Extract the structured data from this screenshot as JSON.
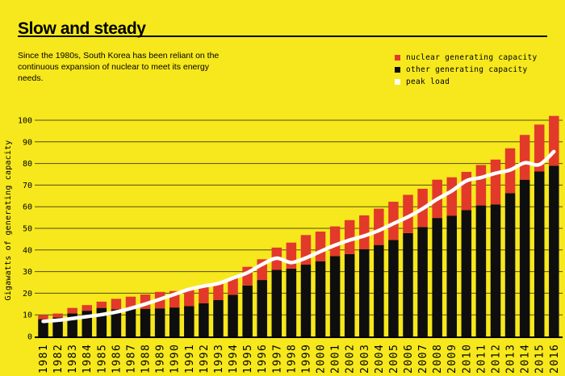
{
  "header": {
    "title": "Slow and steady",
    "subtitle_lines": [
      "Since the 1980s, South Korea has been reliant on the",
      "continuous expansion of nuclear to meet its energy",
      "needs."
    ]
  },
  "legend": {
    "items": [
      {
        "label": "nuclear generating capacity",
        "color": "#E2392B"
      },
      {
        "label": "other generating capacity",
        "color": "#0E0E0E"
      },
      {
        "label": "peak load",
        "color": "#FFFEF2"
      }
    ]
  },
  "colors": {
    "background": "#F6E81C",
    "nuclear_bar": "#E2392B",
    "other_bar": "#0E0E0E",
    "peak_line": "#FFFFFF",
    "gridline": "#524C15",
    "axis": "#000000"
  },
  "chart_data": {
    "type": "bar",
    "stacked": true,
    "title": "Slow and steady",
    "ylabel": "Gigawatts of generating capacity",
    "xlabel": "",
    "ylim": [
      0,
      100
    ],
    "yticks": [
      0,
      10,
      20,
      30,
      40,
      50,
      60,
      70,
      80,
      90,
      100
    ],
    "grid": true,
    "legend_position": "top-right",
    "categories": [
      "1981",
      "1982",
      "1983",
      "1984",
      "1985",
      "1986",
      "1987",
      "1988",
      "1989",
      "1990",
      "1991",
      "1992",
      "1993",
      "1994",
      "1995",
      "1996",
      "1997",
      "1998",
      "1999",
      "2000",
      "2001",
      "2002",
      "2003",
      "2004",
      "2005",
      "2006",
      "2007",
      "2008",
      "2009",
      "2010",
      "2011",
      "2012",
      "2013",
      "2014",
      "2015",
      "2016"
    ],
    "series": [
      {
        "name": "other generating capacity",
        "render": "bar-bottom",
        "color": "#0E0E0E",
        "values": [
          8.0,
          8.8,
          10.7,
          11.9,
          13.2,
          12.6,
          12.7,
          12.8,
          13.0,
          13.4,
          14.1,
          15.4,
          16.9,
          19.3,
          23.6,
          26.1,
          30.8,
          31.4,
          33.2,
          34.8,
          37.2,
          38.1,
          40.3,
          42.3,
          44.6,
          47.8,
          50.6,
          54.8,
          55.9,
          58.4,
          60.6,
          61.1,
          66.3,
          72.5,
          76.3,
          79.0
        ]
      },
      {
        "name": "nuclear generating capacity",
        "render": "bar-top",
        "color": "#E2392B",
        "values": [
          1.8,
          1.8,
          2.5,
          2.6,
          2.9,
          4.8,
          5.7,
          6.6,
          7.6,
          7.6,
          7.6,
          7.6,
          7.6,
          7.6,
          8.6,
          9.6,
          10.3,
          12.0,
          13.7,
          13.7,
          13.7,
          15.7,
          15.7,
          16.8,
          17.7,
          17.7,
          17.7,
          17.7,
          17.7,
          17.7,
          18.7,
          20.7,
          20.7,
          20.7,
          21.7,
          23.0
        ]
      },
      {
        "name": "peak load",
        "render": "line",
        "color": "#FFFFFF",
        "values": [
          7.0,
          7.5,
          8.3,
          9.2,
          10.1,
          11.3,
          13.0,
          15.0,
          17.2,
          19.5,
          21.8,
          23.3,
          24.5,
          27.0,
          29.5,
          33.3,
          36.2,
          34.2,
          36.3,
          39.3,
          42.2,
          44.6,
          46.5,
          49.0,
          52.2,
          55.3,
          59.1,
          63.5,
          67.3,
          72.0,
          73.5,
          75.5,
          77.0,
          80.3,
          79.5,
          85.5
        ]
      }
    ]
  }
}
